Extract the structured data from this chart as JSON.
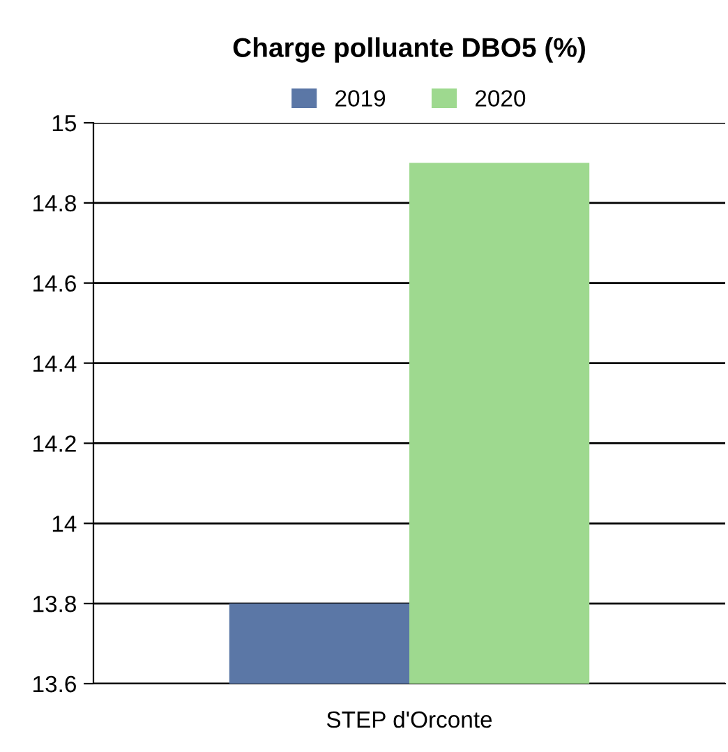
{
  "chart_data": {
    "type": "bar",
    "title": "Charge polluante DBO5 (%)",
    "categories": [
      "STEP d'Orconte"
    ],
    "series": [
      {
        "name": "2019",
        "color": "#5b77a6",
        "values": [
          13.8
        ]
      },
      {
        "name": "2020",
        "color": "#9ed98f",
        "values": [
          14.9
        ]
      }
    ],
    "ylim": [
      13.6,
      15
    ],
    "yticks": [
      13.6,
      13.8,
      14,
      14.2,
      14.4,
      14.6,
      14.8,
      15
    ],
    "grid": "y",
    "legend": "top"
  }
}
